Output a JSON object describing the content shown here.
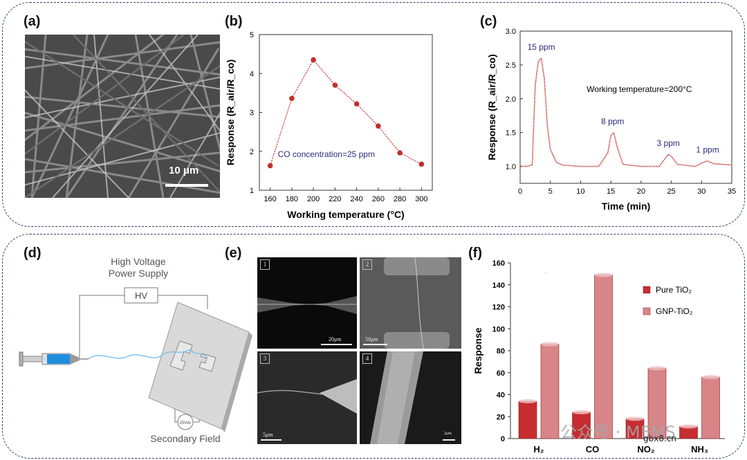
{
  "panels": {
    "a": {
      "label": "(a)",
      "scale_text": "10 μm"
    },
    "b": {
      "label": "(b)",
      "annotation": "CO concentration=25 ppm"
    },
    "c": {
      "label": "(c)",
      "annotation": "Working temperature=200°C"
    },
    "d": {
      "label": "(d)",
      "supply_line1": "High Voltage",
      "supply_line2": "Power Supply",
      "hv": "HV",
      "field": "Secondary Field",
      "meter": "25Vdc"
    },
    "e": {
      "label": "(e)",
      "tiles": [
        {
          "num": "1",
          "scale": "20μm"
        },
        {
          "num": "2",
          "scale": "50μm"
        },
        {
          "num": "3",
          "scale": "5μm"
        },
        {
          "num": "4",
          "scale": "2μm"
        }
      ]
    },
    "f": {
      "label": "(f)",
      "dot": "."
    }
  },
  "chart_data": [
    {
      "id": "b",
      "type": "line",
      "title": "",
      "xlabel": "Working temperature (°C)",
      "ylabel": "Response (R_air/R_co)",
      "xlim": [
        150,
        310
      ],
      "ylim": [
        1,
        5
      ],
      "xticks": [
        160,
        180,
        200,
        220,
        240,
        260,
        280,
        300
      ],
      "yticks": [
        1,
        2,
        3,
        4,
        5
      ],
      "x": [
        160,
        180,
        200,
        220,
        240,
        260,
        280,
        300
      ],
      "y": [
        1.63,
        3.36,
        4.35,
        3.7,
        3.22,
        2.65,
        1.96,
        1.67
      ],
      "color": "#c0302a"
    },
    {
      "id": "c",
      "type": "line",
      "title": "",
      "xlabel": "Time (min)",
      "ylabel": "Response (R_air/R_co)",
      "xlim": [
        0,
        35
      ],
      "ylim": [
        0.75,
        3.0
      ],
      "xticks": [
        0,
        5,
        10,
        15,
        20,
        25,
        30,
        35
      ],
      "yticks": [
        1.0,
        1.5,
        2.0,
        2.5,
        3.0
      ],
      "x": [
        0,
        1,
        2,
        2.5,
        3,
        3.5,
        4,
        4.5,
        5,
        6,
        7,
        10,
        13,
        14.5,
        15,
        15.5,
        16,
        17,
        20,
        23,
        24,
        24.5,
        25,
        26,
        29,
        30,
        31,
        32,
        35
      ],
      "y": [
        1.0,
        1.0,
        1.02,
        2.2,
        2.55,
        2.6,
        2.3,
        1.6,
        1.25,
        1.06,
        1.02,
        1.0,
        1.0,
        1.2,
        1.45,
        1.5,
        1.3,
        1.03,
        1.0,
        1.0,
        1.12,
        1.18,
        1.15,
        1.03,
        1.0,
        1.05,
        1.08,
        1.04,
        1.02
      ],
      "peak_labels": [
        {
          "x": 3.5,
          "y": 2.6,
          "text": "15 ppm"
        },
        {
          "x": 15.3,
          "y": 1.5,
          "text": "8 ppm"
        },
        {
          "x": 24.5,
          "y": 1.18,
          "text": "3 ppm"
        },
        {
          "x": 31,
          "y": 1.08,
          "text": "1 ppm"
        }
      ],
      "color": "#c0302a"
    },
    {
      "id": "f",
      "type": "bar",
      "title": "",
      "xlabel": "",
      "ylabel": "Response",
      "ylim": [
        0,
        160
      ],
      "yticks": [
        0,
        20,
        40,
        60,
        80,
        100,
        120,
        140,
        160
      ],
      "categories": [
        "H₂",
        "CO",
        "NO₂",
        "NH₃"
      ],
      "series": [
        {
          "name": "Pure TiO₂",
          "values": [
            34,
            24,
            18,
            11
          ],
          "color": "#c62d31"
        },
        {
          "name": "GNP-TiO₂",
          "values": [
            86,
            149,
            64,
            56
          ],
          "color": "#d88588"
        }
      ],
      "legend": "top-right"
    }
  ],
  "watermark": {
    "text": "公众号 · MEMS",
    "site": "gbx8.cn"
  }
}
